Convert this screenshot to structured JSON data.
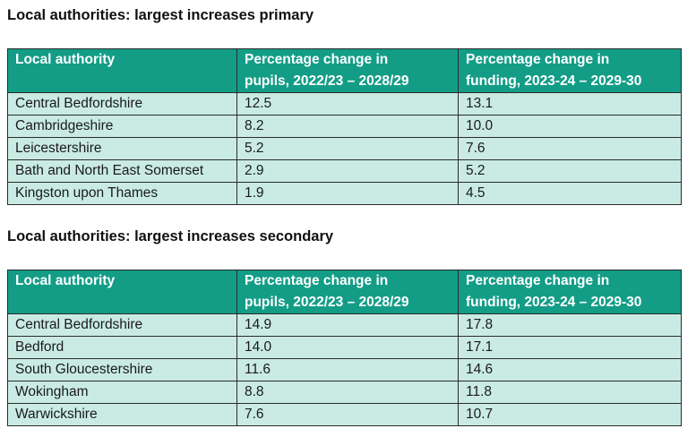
{
  "primary": {
    "title": "Local authorities: largest increases primary",
    "headers": [
      [
        "Local authority",
        ""
      ],
      [
        "Percentage change in",
        "pupils, 2022/23 – 2028/29"
      ],
      [
        "Percentage change in",
        "funding, 2023-24 – 2029-30"
      ]
    ],
    "rows": [
      [
        "Central Bedfordshire",
        "12.5",
        "13.1"
      ],
      [
        "Cambridgeshire",
        "8.2",
        "10.0"
      ],
      [
        "Leicestershire",
        "5.2",
        "7.6"
      ],
      [
        "Bath and North East Somerset",
        "2.9",
        "5.2"
      ],
      [
        "Kingston upon Thames",
        "1.9",
        "4.5"
      ]
    ]
  },
  "secondary": {
    "title": "Local authorities: largest increases secondary",
    "headers": [
      [
        "Local authority",
        ""
      ],
      [
        "Percentage change in",
        "pupils, 2022/23 – 2028/29"
      ],
      [
        "Percentage change in",
        "funding, 2023-24 – 2029-30"
      ]
    ],
    "rows": [
      [
        "Central Bedfordshire",
        "14.9",
        "17.8"
      ],
      [
        "Bedford",
        "14.0",
        "17.1"
      ],
      [
        "South Gloucestershire",
        "11.6",
        "14.6"
      ],
      [
        "Wokingham",
        "8.8",
        "11.8"
      ],
      [
        "Warwickshire",
        "7.6",
        "10.7"
      ]
    ]
  },
  "colors": {
    "header_bg": "#139d87",
    "header_text": "#ffffff",
    "row_bg": "#c9ebe3",
    "border": "#2b2b2b"
  }
}
